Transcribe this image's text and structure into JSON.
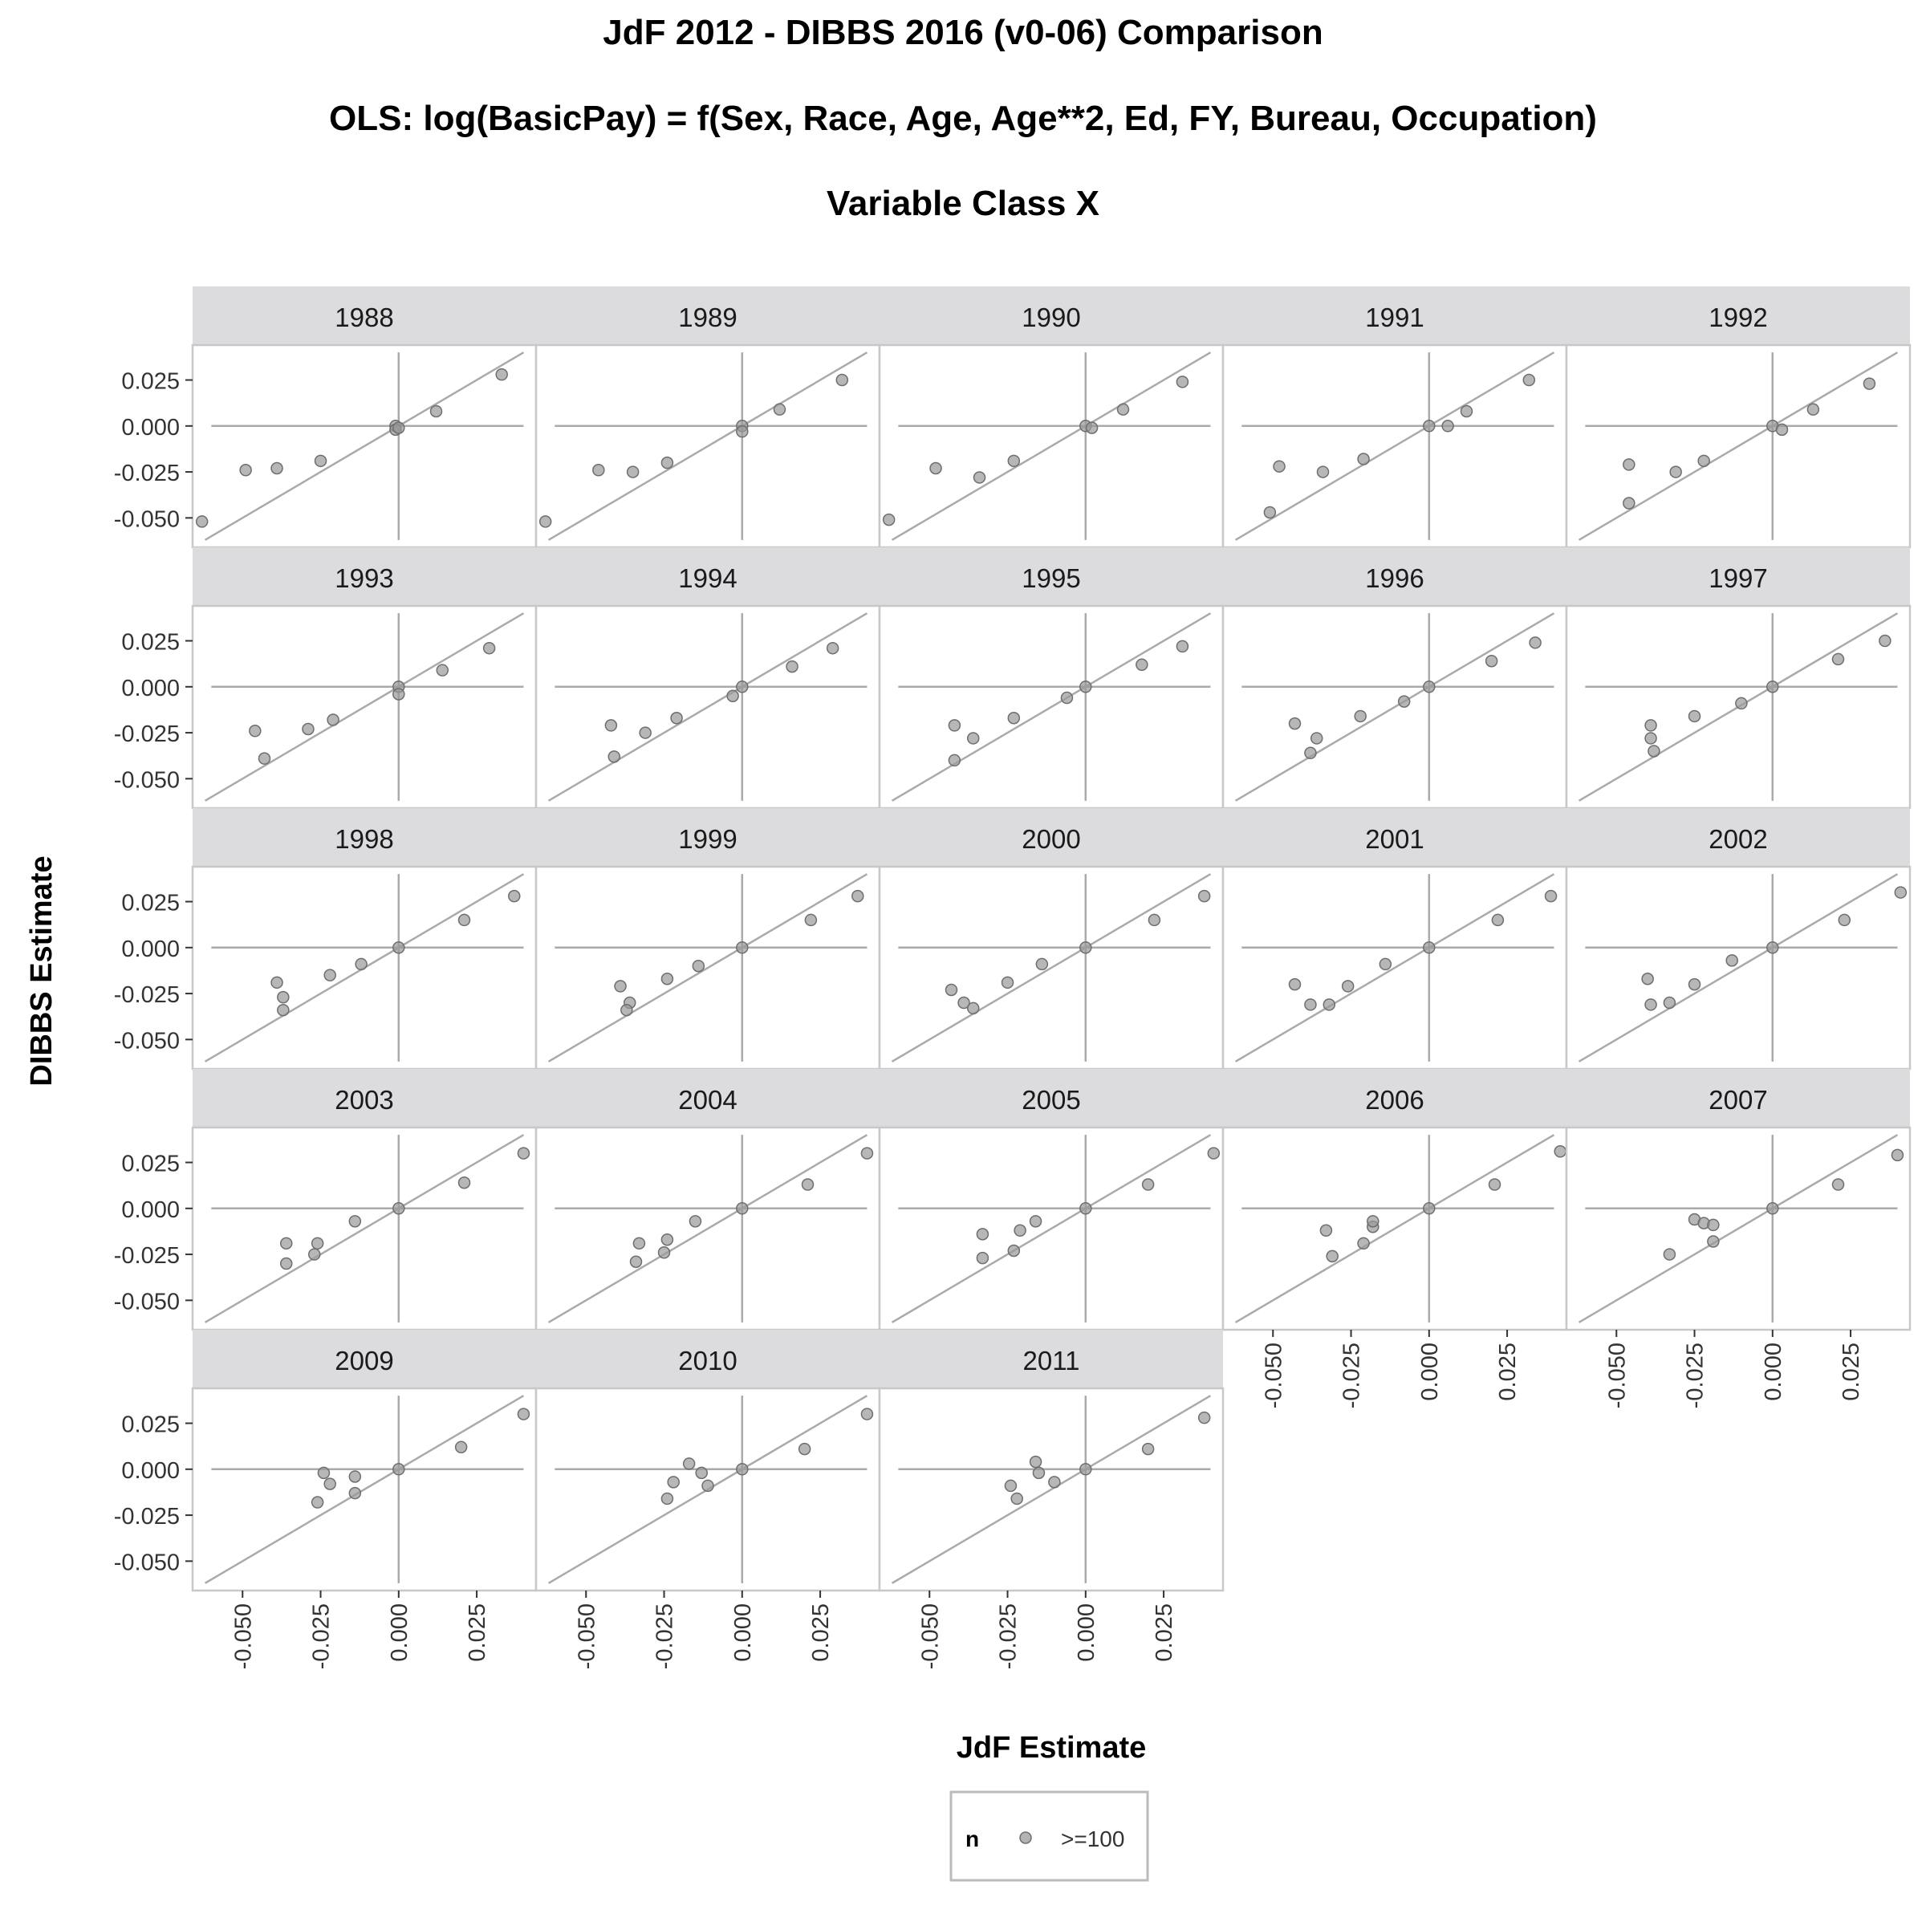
{
  "chart_data": {
    "type": "scatter",
    "title_lines": [
      "JdF 2012 - DIBBS 2016 (v0-06) Comparison",
      "OLS:  log(BasicPay) = f(Sex, Race, Age, Age**2, Ed, FY, Bureau, Occupation)",
      "Variable Class X"
    ],
    "xlabel": "JdF Estimate",
    "ylabel": "DIBBS Estimate",
    "xlim": [
      -0.066,
      0.044
    ],
    "ylim": [
      -0.066,
      0.044
    ],
    "x_ticks": [
      "-0.050",
      "-0.025",
      "0.000",
      "0.025"
    ],
    "y_ticks": [
      "0.025",
      "0.000",
      "-0.025",
      "-0.050"
    ],
    "tick_values": [
      -0.05,
      -0.025,
      0.0,
      0.025
    ],
    "grid": false,
    "reference_lines": [
      "x=0",
      "y=0",
      "y=x"
    ],
    "legend": {
      "position": "bottom",
      "title": "n",
      "label": ">=100"
    },
    "colors": {
      "point": "#999999",
      "point_edge": "#6e6e6e",
      "line": "#aaaaaa",
      "strip": "#dcdbde",
      "panel_border": "#c8c8c8"
    },
    "panels": [
      {
        "label": "1988",
        "points": [
          [
            -0.063,
            -0.052
          ],
          [
            -0.049,
            -0.024
          ],
          [
            -0.039,
            -0.023
          ],
          [
            -0.025,
            -0.019
          ],
          [
            -0.001,
            0.0
          ],
          [
            -0.001,
            -0.002
          ],
          [
            0.0,
            -0.001
          ],
          [
            0.012,
            0.008
          ],
          [
            0.033,
            0.028
          ]
        ]
      },
      {
        "label": "1989",
        "points": [
          [
            -0.063,
            -0.052
          ],
          [
            -0.046,
            -0.024
          ],
          [
            -0.035,
            -0.025
          ],
          [
            -0.024,
            -0.02
          ],
          [
            0.0,
            0.0
          ],
          [
            0.0,
            -0.003
          ],
          [
            0.012,
            0.009
          ],
          [
            0.032,
            0.025
          ]
        ]
      },
      {
        "label": "1990",
        "points": [
          [
            -0.063,
            -0.051
          ],
          [
            -0.048,
            -0.023
          ],
          [
            -0.034,
            -0.028
          ],
          [
            -0.023,
            -0.019
          ],
          [
            0.0,
            0.0
          ],
          [
            0.002,
            -0.001
          ],
          [
            0.012,
            0.009
          ],
          [
            0.031,
            0.024
          ]
        ]
      },
      {
        "label": "1991",
        "points": [
          [
            -0.051,
            -0.047
          ],
          [
            -0.048,
            -0.022
          ],
          [
            -0.034,
            -0.025
          ],
          [
            -0.021,
            -0.018
          ],
          [
            0.0,
            0.0
          ],
          [
            0.006,
            0.0
          ],
          [
            0.012,
            0.008
          ],
          [
            0.032,
            0.025
          ]
        ]
      },
      {
        "label": "1992",
        "points": [
          [
            -0.046,
            -0.042
          ],
          [
            -0.046,
            -0.021
          ],
          [
            -0.031,
            -0.025
          ],
          [
            -0.022,
            -0.019
          ],
          [
            0.0,
            0.0
          ],
          [
            0.003,
            -0.002
          ],
          [
            0.013,
            0.009
          ],
          [
            0.031,
            0.023
          ]
        ]
      },
      {
        "label": "1993",
        "points": [
          [
            -0.046,
            -0.024
          ],
          [
            -0.043,
            -0.039
          ],
          [
            -0.029,
            -0.023
          ],
          [
            -0.021,
            -0.018
          ],
          [
            0.0,
            0.0
          ],
          [
            0.0,
            -0.004
          ],
          [
            0.014,
            0.009
          ],
          [
            0.029,
            0.021
          ]
        ]
      },
      {
        "label": "1994",
        "points": [
          [
            -0.042,
            -0.021
          ],
          [
            -0.041,
            -0.038
          ],
          [
            -0.031,
            -0.025
          ],
          [
            -0.021,
            -0.017
          ],
          [
            -0.003,
            -0.005
          ],
          [
            0.0,
            0.0
          ],
          [
            0.016,
            0.011
          ],
          [
            0.029,
            0.021
          ]
        ]
      },
      {
        "label": "1995",
        "points": [
          [
            -0.042,
            -0.021
          ],
          [
            -0.042,
            -0.04
          ],
          [
            -0.036,
            -0.028
          ],
          [
            -0.023,
            -0.017
          ],
          [
            -0.006,
            -0.006
          ],
          [
            0.0,
            0.0
          ],
          [
            0.018,
            0.012
          ],
          [
            0.031,
            0.022
          ]
        ]
      },
      {
        "label": "1996",
        "points": [
          [
            -0.043,
            -0.02
          ],
          [
            -0.038,
            -0.036
          ],
          [
            -0.036,
            -0.028
          ],
          [
            -0.022,
            -0.016
          ],
          [
            -0.008,
            -0.008
          ],
          [
            0.0,
            0.0
          ],
          [
            0.02,
            0.014
          ],
          [
            0.034,
            0.024
          ]
        ]
      },
      {
        "label": "1997",
        "points": [
          [
            -0.039,
            -0.021
          ],
          [
            -0.039,
            -0.028
          ],
          [
            -0.038,
            -0.035
          ],
          [
            -0.025,
            -0.016
          ],
          [
            -0.01,
            -0.009
          ],
          [
            0.0,
            0.0
          ],
          [
            0.021,
            0.015
          ],
          [
            0.036,
            0.025
          ]
        ]
      },
      {
        "label": "1998",
        "points": [
          [
            -0.039,
            -0.019
          ],
          [
            -0.037,
            -0.027
          ],
          [
            -0.037,
            -0.034
          ],
          [
            -0.022,
            -0.015
          ],
          [
            -0.012,
            -0.009
          ],
          [
            0.0,
            0.0
          ],
          [
            0.021,
            0.015
          ],
          [
            0.037,
            0.028
          ]
        ]
      },
      {
        "label": "1999",
        "points": [
          [
            -0.039,
            -0.021
          ],
          [
            -0.036,
            -0.03
          ],
          [
            -0.037,
            -0.034
          ],
          [
            -0.024,
            -0.017
          ],
          [
            -0.014,
            -0.01
          ],
          [
            0.0,
            0.0
          ],
          [
            0.022,
            0.015
          ],
          [
            0.037,
            0.028
          ]
        ]
      },
      {
        "label": "2000",
        "points": [
          [
            -0.043,
            -0.023
          ],
          [
            -0.039,
            -0.03
          ],
          [
            -0.036,
            -0.033
          ],
          [
            -0.025,
            -0.019
          ],
          [
            -0.014,
            -0.009
          ],
          [
            0.0,
            0.0
          ],
          [
            0.022,
            0.015
          ],
          [
            0.038,
            0.028
          ]
        ]
      },
      {
        "label": "2001",
        "points": [
          [
            -0.043,
            -0.02
          ],
          [
            -0.038,
            -0.031
          ],
          [
            -0.032,
            -0.031
          ],
          [
            -0.026,
            -0.021
          ],
          [
            -0.014,
            -0.009
          ],
          [
            0.0,
            0.0
          ],
          [
            0.022,
            0.015
          ],
          [
            0.039,
            0.028
          ]
        ]
      },
      {
        "label": "2002",
        "points": [
          [
            -0.04,
            -0.017
          ],
          [
            -0.039,
            -0.031
          ],
          [
            -0.033,
            -0.03
          ],
          [
            -0.025,
            -0.02
          ],
          [
            -0.013,
            -0.007
          ],
          [
            0.0,
            0.0
          ],
          [
            0.023,
            0.015
          ],
          [
            0.041,
            0.03
          ]
        ]
      },
      {
        "label": "2003",
        "points": [
          [
            -0.036,
            -0.019
          ],
          [
            -0.036,
            -0.03
          ],
          [
            -0.027,
            -0.025
          ],
          [
            -0.026,
            -0.019
          ],
          [
            -0.014,
            -0.007
          ],
          [
            0.0,
            0.0
          ],
          [
            0.021,
            0.014
          ],
          [
            0.04,
            0.03
          ]
        ]
      },
      {
        "label": "2004",
        "points": [
          [
            -0.033,
            -0.019
          ],
          [
            -0.034,
            -0.029
          ],
          [
            -0.024,
            -0.017
          ],
          [
            -0.025,
            -0.024
          ],
          [
            -0.015,
            -0.007
          ],
          [
            0.0,
            0.0
          ],
          [
            0.021,
            0.013
          ],
          [
            0.04,
            0.03
          ]
        ]
      },
      {
        "label": "2005",
        "points": [
          [
            -0.033,
            -0.014
          ],
          [
            -0.033,
            -0.027
          ],
          [
            -0.023,
            -0.023
          ],
          [
            -0.021,
            -0.012
          ],
          [
            -0.016,
            -0.007
          ],
          [
            0.0,
            0.0
          ],
          [
            0.02,
            0.013
          ],
          [
            0.041,
            0.03
          ]
        ]
      },
      {
        "label": "2006",
        "points": [
          [
            -0.033,
            -0.012
          ],
          [
            -0.031,
            -0.026
          ],
          [
            -0.021,
            -0.019
          ],
          [
            -0.018,
            -0.01
          ],
          [
            -0.018,
            -0.007
          ],
          [
            0.0,
            0.0
          ],
          [
            0.021,
            0.013
          ],
          [
            0.042,
            0.031
          ]
        ]
      },
      {
        "label": "2007",
        "points": [
          [
            -0.033,
            -0.025
          ],
          [
            -0.025,
            -0.006
          ],
          [
            -0.022,
            -0.008
          ],
          [
            -0.019,
            -0.018
          ],
          [
            -0.019,
            -0.009
          ],
          [
            0.0,
            0.0
          ],
          [
            0.021,
            0.013
          ],
          [
            0.04,
            0.029
          ]
        ]
      },
      {
        "label": "2009",
        "points": [
          [
            -0.026,
            -0.018
          ],
          [
            -0.024,
            -0.002
          ],
          [
            -0.022,
            -0.008
          ],
          [
            -0.014,
            -0.004
          ],
          [
            -0.014,
            -0.013
          ],
          [
            0.0,
            0.0
          ],
          [
            0.02,
            0.012
          ],
          [
            0.04,
            0.03
          ]
        ]
      },
      {
        "label": "2010",
        "points": [
          [
            -0.024,
            -0.016
          ],
          [
            -0.022,
            -0.007
          ],
          [
            -0.017,
            0.003
          ],
          [
            -0.013,
            -0.002
          ],
          [
            -0.011,
            -0.009
          ],
          [
            0.0,
            0.0
          ],
          [
            0.02,
            0.011
          ],
          [
            0.04,
            0.03
          ]
        ]
      },
      {
        "label": "2011",
        "points": [
          [
            -0.024,
            -0.009
          ],
          [
            -0.022,
            -0.016
          ],
          [
            -0.016,
            0.004
          ],
          [
            -0.015,
            -0.002
          ],
          [
            -0.01,
            -0.007
          ],
          [
            0.0,
            0.0
          ],
          [
            0.02,
            0.011
          ],
          [
            0.038,
            0.028
          ]
        ]
      }
    ]
  }
}
